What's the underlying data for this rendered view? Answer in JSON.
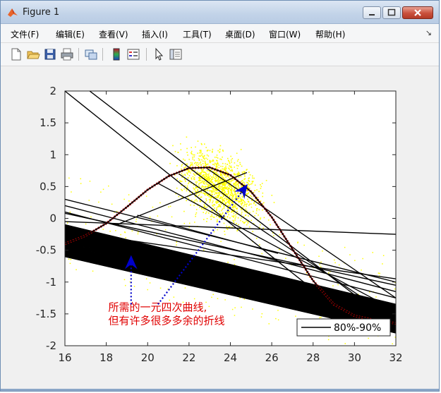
{
  "window": {
    "title": "Figure 1"
  },
  "menu": [
    "文件(F)",
    "编辑(E)",
    "查看(V)",
    "插入(I)",
    "工具(T)",
    "桌面(D)",
    "窗口(W)",
    "帮助(H)"
  ],
  "toolbar": {
    "buttons": [
      "new-figure-icon",
      "open-file-icon",
      "save-icon",
      "print-icon",
      "link-plot-icon",
      "colorbar-icon",
      "legend-icon",
      "edit-plot-icon",
      "property-inspector-icon"
    ]
  },
  "colors": {
    "scatter": "#ffff00",
    "lines": "#000000",
    "curve": "#cc0000",
    "annotation_text": "#e00000",
    "arrow": "#0000cc"
  },
  "chart_data": {
    "type": "line",
    "title": "",
    "xlabel": "",
    "ylabel": "",
    "xlim": [
      16,
      32
    ],
    "ylim": [
      -2,
      2
    ],
    "xticks": [
      "16",
      "18",
      "20",
      "22",
      "24",
      "26",
      "28",
      "30",
      "32"
    ],
    "yticks": [
      "2",
      "1.5",
      "1",
      "0.5",
      "0",
      "-0.5",
      "-1",
      "-1.5",
      "-2"
    ],
    "legend": {
      "position": "bottom-right",
      "entries": [
        "80%-90%"
      ]
    },
    "series": [
      {
        "label": "80%-90%",
        "kind": "quartic-curve",
        "x": [
          16,
          17,
          18,
          19,
          20,
          21,
          22,
          23,
          24,
          25,
          26,
          27,
          28,
          29,
          30,
          31,
          32
        ],
        "y": [
          -0.4,
          -0.27,
          -0.08,
          0.18,
          0.45,
          0.66,
          0.79,
          0.8,
          0.68,
          0.42,
          0.02,
          -0.48,
          -0.98,
          -1.35,
          -1.53,
          -1.6,
          -1.65
        ]
      }
    ],
    "fan_lines": [
      {
        "x": [
          16,
          32
        ],
        "y": [
          -0.05,
          -0.25
        ]
      },
      {
        "x": [
          16,
          32
        ],
        "y": [
          -0.2,
          -0.95
        ]
      },
      {
        "x": [
          16,
          32
        ],
        "y": [
          0.3,
          -1.0
        ]
      },
      {
        "x": [
          16,
          32
        ],
        "y": [
          0.2,
          -1.15
        ]
      },
      {
        "x": [
          16,
          32
        ],
        "y": [
          0.1,
          -1.25
        ]
      },
      {
        "x": [
          16,
          32
        ],
        "y": [
          -0.1,
          -1.35
        ]
      },
      {
        "x": [
          16,
          32
        ],
        "y": [
          -0.3,
          -1.5
        ]
      },
      {
        "x": [
          16,
          32
        ],
        "y": [
          -0.4,
          -1.65
        ]
      },
      {
        "x": [
          16,
          32
        ],
        "y": [
          -0.6,
          -1.8
        ]
      },
      {
        "x": [
          16,
          28.7
        ],
        "y": [
          2.0,
          -1.3
        ]
      },
      {
        "x": [
          17.2,
          32
        ],
        "y": [
          2.0,
          -1.7
        ]
      },
      {
        "x": [
          16,
          32
        ],
        "y": [
          0.08,
          -1.05
        ]
      },
      {
        "x": [
          16,
          32
        ],
        "y": [
          -0.18,
          -1.6
        ]
      }
    ],
    "dense_band": {
      "x": [
        16,
        32
      ],
      "upper": [
        -0.1,
        -1.35
      ],
      "lower": [
        -0.6,
        -1.8
      ]
    },
    "scatter_cloud": {
      "x_center": 23.5,
      "y_center": 0.5,
      "x_spread": 3.2,
      "y_spread": 0.9,
      "n": 1400
    },
    "annotations": [
      {
        "text": [
          "所需的一元四次曲线,",
          "但有许多很多多余的折线"
        ],
        "x": 18.1,
        "y": -1.45
      },
      {
        "kind": "arrow",
        "from": [
          19.2,
          -1.35
        ],
        "to": [
          19.2,
          -0.65
        ]
      },
      {
        "kind": "arrow",
        "from": [
          20.5,
          -1.35
        ],
        "to": [
          24.7,
          0.48
        ]
      }
    ]
  }
}
